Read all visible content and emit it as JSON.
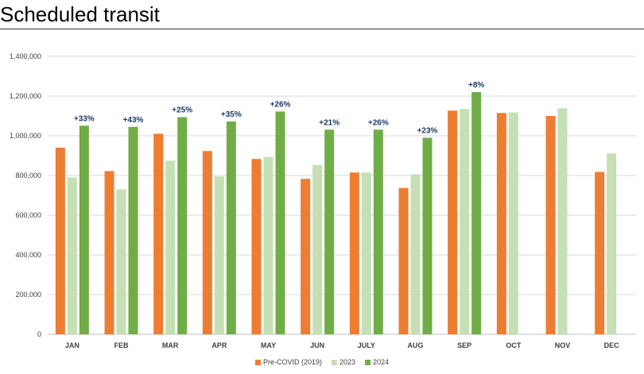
{
  "header": {
    "title": "Scheduled transit"
  },
  "colors": {
    "pre_covid": "#ED7D31",
    "y2023": "#C5E0B4",
    "y2024": "#70AD47",
    "label": "#1F3864",
    "grid": "#D9D9D9",
    "axis": "#BFBFBF"
  },
  "chart_data": {
    "type": "bar",
    "title": "Scheduled transit",
    "xlabel": "",
    "ylabel": "",
    "ylim": [
      0,
      1400000
    ],
    "yticks": [
      0,
      200000,
      400000,
      600000,
      800000,
      1000000,
      1200000,
      1400000
    ],
    "ytick_labels": [
      "0",
      "200,000",
      "400,000",
      "600,000",
      "800,000",
      "1,000,000",
      "1,200,000",
      "1,400,000"
    ],
    "grid": true,
    "legend_position": "bottom",
    "categories": [
      "JAN",
      "FEB",
      "MAR",
      "APR",
      "MAY",
      "JUN",
      "JULY",
      "AUG",
      "SEP",
      "OCT",
      "NOV",
      "DEC"
    ],
    "series": [
      {
        "name": "Pre-COVID (2019)",
        "values": [
          940000,
          822000,
          1010000,
          923000,
          883000,
          783000,
          815000,
          737000,
          1127000,
          1115000,
          1100000,
          818000
        ]
      },
      {
        "name": "2023",
        "values": [
          790000,
          730000,
          875000,
          795000,
          893000,
          853000,
          815000,
          806000,
          1135000,
          1118000,
          1138000,
          911000
        ]
      },
      {
        "name": "2024",
        "values": [
          1051000,
          1045000,
          1094000,
          1072000,
          1122000,
          1031000,
          1031000,
          990000,
          1220000,
          null,
          null,
          null
        ]
      }
    ],
    "annotations": [
      "+33%",
      "+43%",
      "+25%",
      "+35%",
      "+26%",
      "+21%",
      "+26%",
      "+23%",
      "+8%",
      null,
      null,
      null
    ]
  }
}
